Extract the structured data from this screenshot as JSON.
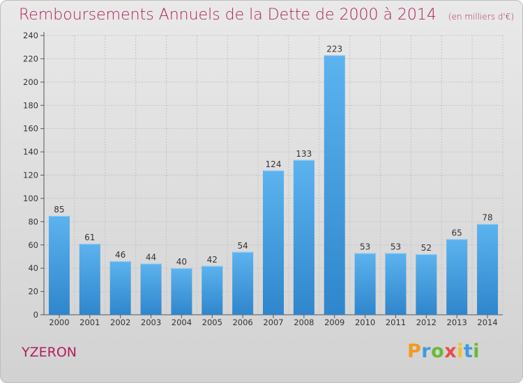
{
  "chart_data": {
    "type": "bar",
    "title": "Remboursements Annuels de la Dette de 2000 à 2014",
    "subtitle": "(en milliers d'€)",
    "categories": [
      "2000",
      "2001",
      "2002",
      "2003",
      "2004",
      "2005",
      "2006",
      "2007",
      "2008",
      "2009",
      "2010",
      "2011",
      "2012",
      "2013",
      "2014"
    ],
    "values": [
      85,
      61,
      46,
      44,
      40,
      42,
      54,
      124,
      133,
      223,
      53,
      53,
      52,
      65,
      78
    ],
    "ylim": [
      0,
      240
    ],
    "yticks": [
      0,
      20,
      40,
      60,
      80,
      100,
      120,
      140,
      160,
      180,
      200,
      220,
      240
    ],
    "grid": true,
    "bar_color": "#4aa3e6",
    "xlabel": "",
    "ylabel": ""
  },
  "footer": {
    "town": "YZERON",
    "logo": "Proxiti"
  },
  "colors": {
    "title": "#b01f5b",
    "logo_letters": [
      "#f29a1f",
      "#3d9be0",
      "#6ab935",
      "#e94c4c",
      "#f2c21f",
      "#3d9be0",
      "#6ab935"
    ]
  }
}
